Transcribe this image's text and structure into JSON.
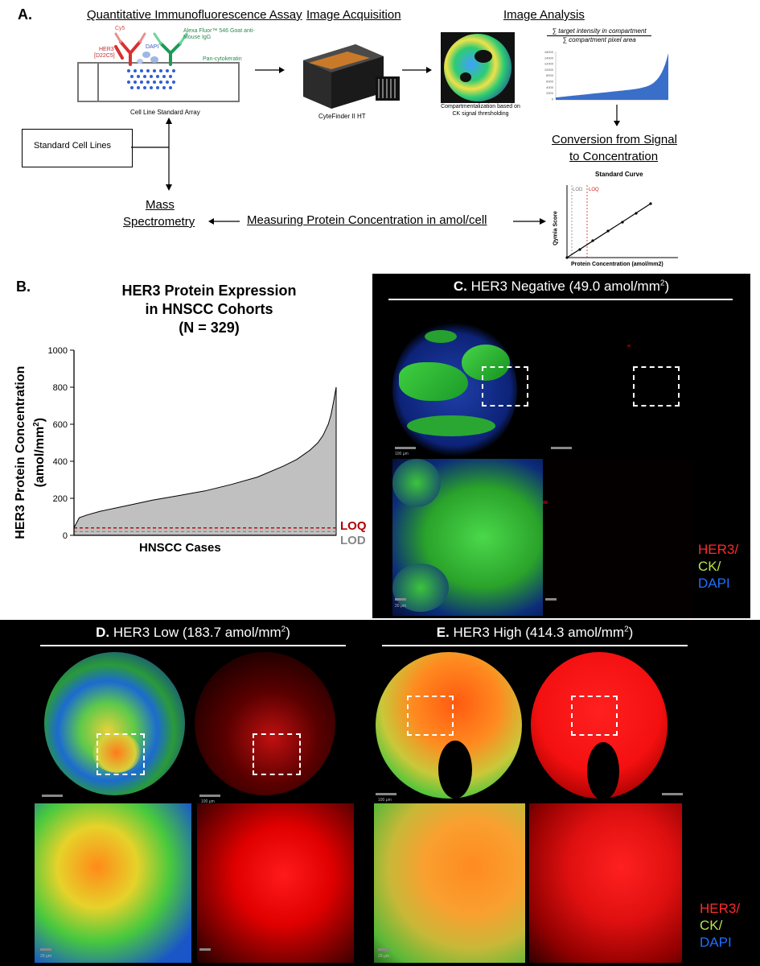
{
  "panelA": {
    "label": "A.",
    "h_assay": "Quantitative Immunofluorescence Assay",
    "h_acq": "Image Acquisition",
    "h_analysis": "Image Analysis",
    "cy5": "Cy5",
    "dapi": "DAPI",
    "alexa": "Alexa Fluor™ 546 Goat anti-Mouse IgG",
    "her3_ab": "HER3",
    "her3_clone": "[D22C5]",
    "pancyto": "Pan-cytokeratin",
    "array_caption": "Cell Line Standard Array",
    "device_caption": "CyteFinder II HT",
    "compart_caption": "Compartmentalization based on CK signal thresholding",
    "formula_num": "∑ target intensity in compartment",
    "formula_den": "∑ compartment pixel area",
    "mini_ticks": [
      "16000",
      "14000",
      "12000",
      "10000",
      "8000",
      "6000",
      "4000",
      "2000",
      "0"
    ],
    "std_cell_lines": "Standard Cell Lines",
    "conversion_1": "Conversion from Signal",
    "conversion_2": "to Concentration",
    "std_curve_title": "Standard Curve",
    "lod": "LOD",
    "loq": "LOQ",
    "qymia": "Qymia Score",
    "prot_conc_axis": "Protein Concentration (amol/mm2)",
    "mass_1": "Mass",
    "mass_2": "Spectrometry",
    "measuring": "Measuring Protein Concentration in amol/cell"
  },
  "panelB": {
    "label": "B.",
    "title_1": "HER3 Protein Expression",
    "title_2": "in HNSCC Cohorts",
    "title_3": "(N = 329)",
    "ylabel_1": "HER3 Protein Concentration",
    "ylabel_2": "(amol/mm",
    "ylabel_sup": "2",
    "ylabel_3": ")",
    "xlabel": "HNSCC Cases",
    "loq": "LOQ",
    "lod": "LOD",
    "colors": {
      "fill": "#c0c0c0",
      "loq": "#b30000",
      "lod": "#888888"
    }
  },
  "chart_data": {
    "type": "area",
    "title": "HER3 Protein Expression in HNSCC Cohorts (N = 329)",
    "xlabel": "HNSCC Cases",
    "ylabel": "HER3 Protein Concentration (amol/mm2)",
    "ylim": [
      0,
      1000
    ],
    "yticks": [
      0,
      200,
      400,
      600,
      800,
      1000
    ],
    "x_fraction": [
      0,
      0.02,
      0.05,
      0.1,
      0.2,
      0.3,
      0.4,
      0.5,
      0.6,
      0.7,
      0.8,
      0.85,
      0.9,
      0.93,
      0.95,
      0.97,
      0.98,
      0.99,
      1.0
    ],
    "values": [
      40,
      95,
      110,
      130,
      160,
      190,
      215,
      240,
      275,
      315,
      375,
      410,
      460,
      500,
      540,
      600,
      650,
      720,
      800
    ],
    "loq": 40,
    "lod": 20,
    "grid": false
  },
  "panelC": {
    "label": "C.",
    "title": "HER3 Negative (49.0 amol/mm",
    "sup": "2",
    "close": ")",
    "scale_100": "100 μm",
    "scale_20": "20 μm"
  },
  "panelD": {
    "label": "D.",
    "title": "HER3 Low (183.7 amol/mm",
    "sup": "2",
    "close": ")",
    "scale_100": "100 μm",
    "scale_20": "20 μm"
  },
  "panelE": {
    "label": "E.",
    "title": "HER3 High (414.3 amol/mm",
    "sup": "2",
    "close": ")",
    "scale_100": "100 μm",
    "scale_20": "20 μm"
  },
  "legend": {
    "her3": "HER3/",
    "ck": "CK/",
    "dapi": "DAPI",
    "colors": {
      "her3": "#ff2a2a",
      "ck": "#b7e34a",
      "dapi": "#1e6fff"
    }
  }
}
